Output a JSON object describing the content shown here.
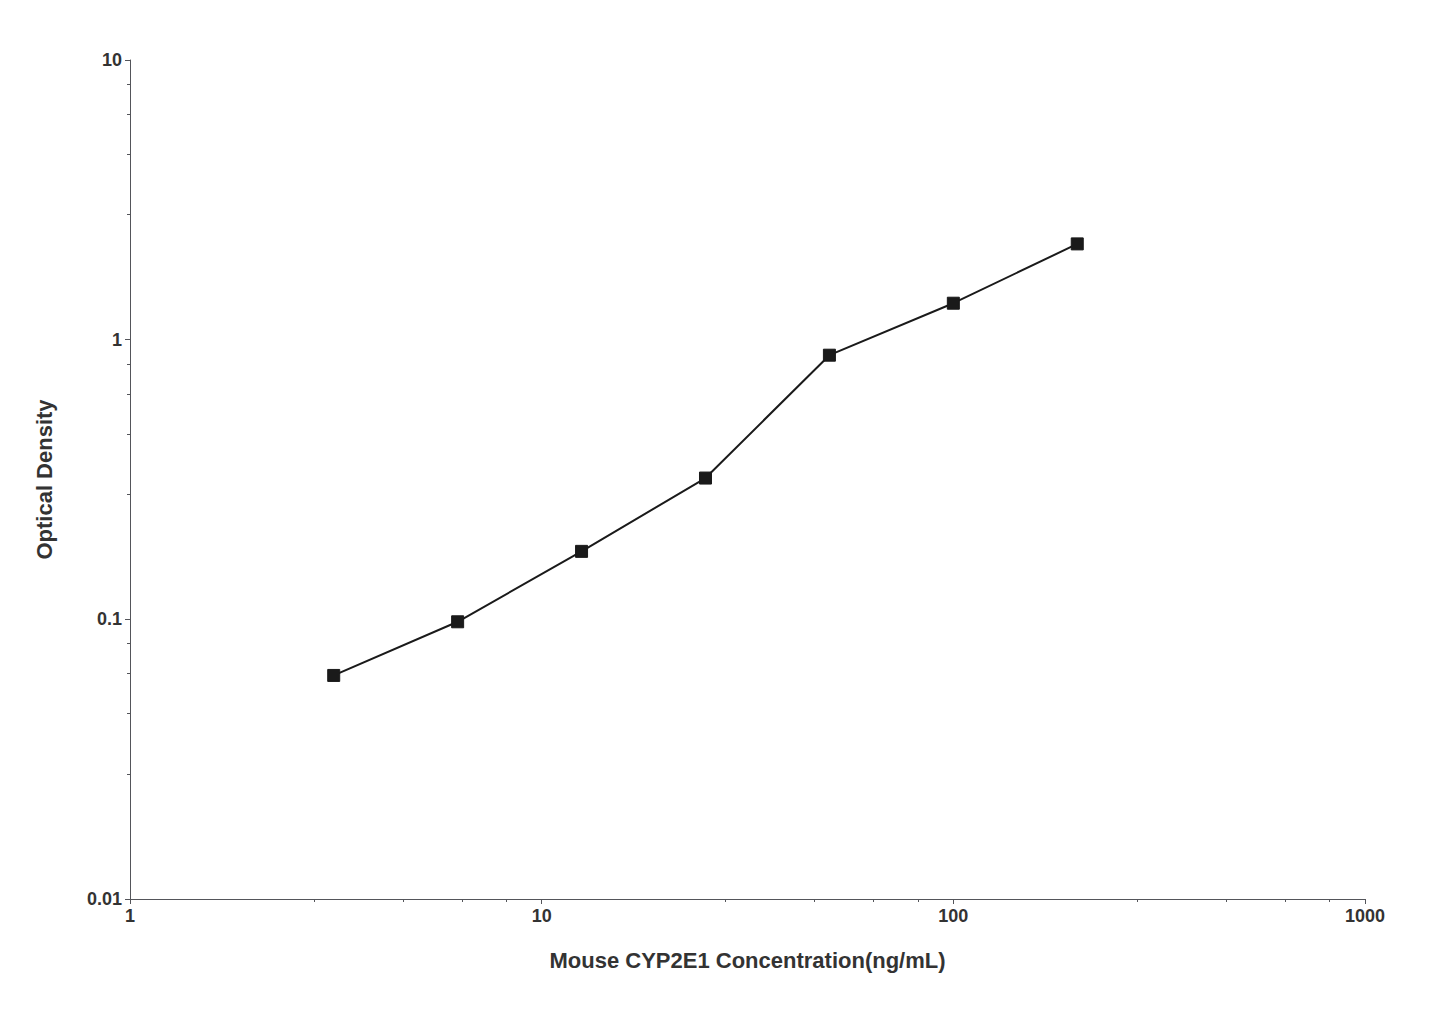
{
  "chart_data": {
    "type": "line",
    "x": [
      3.125,
      6.25,
      12.5,
      25,
      50,
      100,
      200
    ],
    "values": [
      0.063,
      0.098,
      0.175,
      0.32,
      0.88,
      1.35,
      2.2
    ],
    "xlabel": "Mouse CYP2E1 Concentration(ng/mL)",
    "ylabel": "Optical Density",
    "xlim": [
      1,
      1000
    ],
    "ylim": [
      0.01,
      10
    ],
    "xticks": [
      1,
      10,
      100,
      1000
    ],
    "yticks": [
      0.01,
      0.1,
      1,
      10
    ],
    "log": true,
    "grid": false,
    "color": "#1a1a1a",
    "marker": "square"
  }
}
